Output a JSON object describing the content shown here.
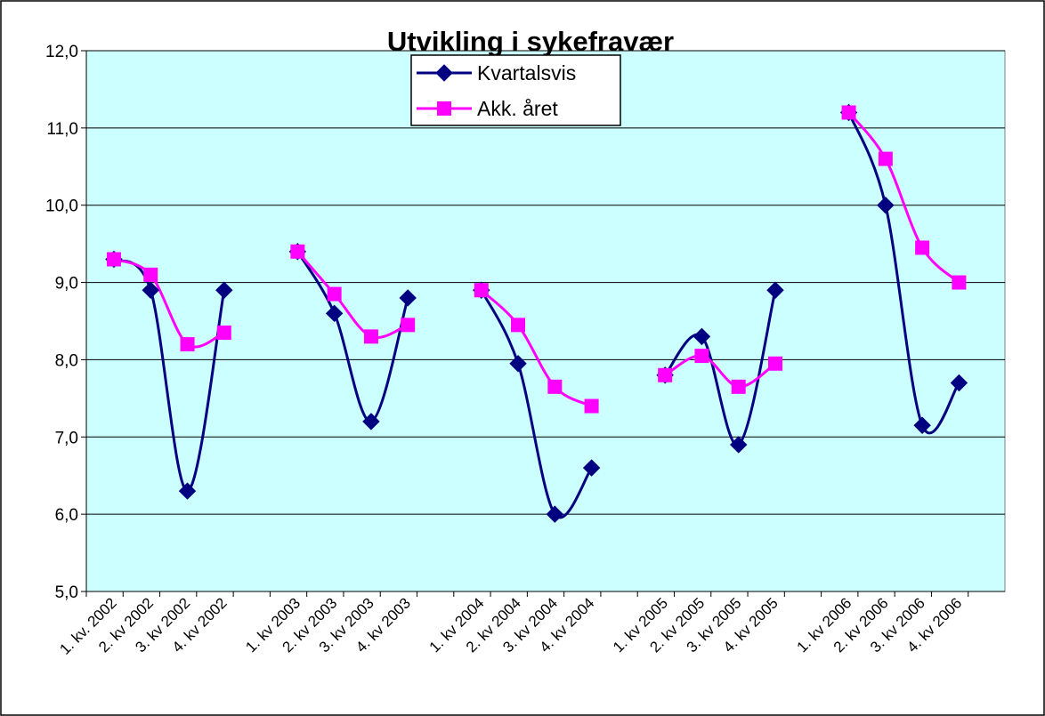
{
  "chart_data": {
    "type": "line",
    "title": "Utvikling i sykefravær",
    "categories": [
      "1. kv. 2002",
      "2. kv  2002",
      "3. kv  2002",
      "4. kv  2002",
      null,
      "1. kv  2003",
      "2. kv 2003",
      "3. kv 2003",
      "4. kv 2003",
      null,
      "1. kv 2004",
      "2. kv 2004",
      "3. kv 2004",
      "4. kv 2004",
      null,
      "1. kv 2005",
      "2. kv 2005",
      "3. kv 2005",
      "4. kv 2005",
      null,
      "1. kv 2006",
      "2. kv 2006",
      "3. kv 2006",
      "4. kv 2006",
      null
    ],
    "series": [
      {
        "name": "Kvartalsvis",
        "color": "#000080",
        "marker": "diamond",
        "values": [
          9.3,
          8.9,
          6.3,
          8.9,
          null,
          9.4,
          8.6,
          7.2,
          8.8,
          null,
          8.9,
          7.95,
          6.0,
          6.6,
          null,
          7.8,
          8.3,
          6.9,
          8.9,
          null,
          11.2,
          10.0,
          7.15,
          7.7,
          null
        ]
      },
      {
        "name": "Akk. året",
        "color": "#ff00ff",
        "marker": "square",
        "values": [
          9.3,
          9.1,
          8.2,
          8.35,
          null,
          9.4,
          8.85,
          8.3,
          8.45,
          null,
          8.9,
          8.45,
          7.65,
          7.4,
          null,
          7.8,
          8.05,
          7.65,
          7.95,
          null,
          11.2,
          10.6,
          9.45,
          9.0,
          null
        ]
      }
    ],
    "ylim": [
      5,
      12
    ],
    "yticks": [
      {
        "value": 5,
        "label": "5,0"
      },
      {
        "value": 6,
        "label": "6,0"
      },
      {
        "value": 7,
        "label": "7,0"
      },
      {
        "value": 8,
        "label": "8,0"
      },
      {
        "value": 9,
        "label": "9,0"
      },
      {
        "value": 10,
        "label": "10,0"
      },
      {
        "value": 11,
        "label": "11,0"
      },
      {
        "value": 12,
        "label": "12,0"
      }
    ],
    "grid": true,
    "smooth": true,
    "legend": "top",
    "plot_background": "#ccffff"
  }
}
